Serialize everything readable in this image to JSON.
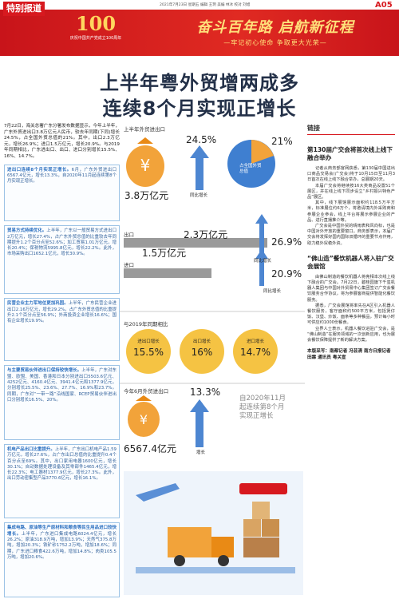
{
  "header": {
    "section": "特别报道",
    "page": "A05",
    "dateline": "2021年7月23日 星期五 编辑 王玥 美编 林冰 校对 刘旭",
    "anniversary": "100",
    "party_text": "庆祝中国共产党成立100周年",
    "slogan": "奋斗百年路 启航新征程",
    "subslogan": "—牢记初心使命 争取更大光荣—"
  },
  "title": [
    "上半年粤外贸增两成多",
    "连续8个月实现正增长"
  ],
  "left": {
    "intro": "7月22日，海关总署广东分署发布数据显示，今年上半年，广东外贸进出口3.8万亿元人民币，较去年同期(下同)增长24.5%，占全国外贸总值的21%。其中，出口2.3万亿元，增长26.9%；进口1.5万亿元，增长20.9%。与2019年同期相比，广东进出口、出口、进口分别增长15.5%、16%、14.7%。",
    "boxes": [
      {
        "lead": "进出口连续8个月实现正增长。",
        "text": "6月，广东外贸进出口6567.4亿元，增长13.3%，自2020年11月起连续第8个月实现正增长。"
      },
      {
        "lead": "贸易方式持续优化。",
        "text": "上半年，广东以一般贸易方式进出口2万亿元，增长27.4%，占广东外贸总值的比重较去年同期提升1.2个百分点至52.6%；加工贸易1.01万亿元，增长20.4%；保税物流5995.8亿元，增长22.2%。此外，市场采购出口1652.1亿元，增长30.9%。"
      },
      {
        "lead": "民营企业主力军地位更加巩固。",
        "text": "上半年，广东民营企业进出口2.16万亿元，增长29.2%，占广东外贸总值的比重提升2.1个百分点至56.9%；外商投资企业增长16.6%；国有企业增长19.9%。"
      },
      {
        "lead": "与主要贸易伙伴进出口保持较快增长。",
        "text": "上半年，广东对东盟、欧盟、美国、香港和日本分别进出口5503.6亿元、4252亿元、4160.4亿元、3941.4亿元和1377.9亿元，分别增长25.5%、23.6%、27.7%、16.9%和23.7%。同期，广东对“一带一路”沿线国家、RCEP贸易伙伴进出口分别增长16.5%、20%。"
      },
      {
        "lead": "机电产品出口比重提升。",
        "text": "上半年，广东出口机电产品1.59万亿元，增长27.6%，占广东出口总值的比重提升0.4个百分点至69%。其中，出口家用电器1600亿元，增长30.1%；自动数据处理设备及其零部件1465.4亿元，增长22.3%；电工器材1377.9亿元，增长27.3%。此外，出口劳动密集型产品3770.6亿元，增长16.1%。"
      },
      {
        "lead": "集成电路、原油等生产原材料和粮食等民生用品进口较快增长。",
        "text": "上半年，广东进口集成电路6024.4亿元，增长26.2%；原油318.9万吨，增加13.9%；天然气375.8万吨，增加20.3%；铁矿砂1752.2万吨，增加18.6%；同期，广东进口粮食422.6万吨，增加14.8%；肉类105.5万吨，增加20.6%。"
      }
    ]
  },
  "infographic": {
    "total_label": "上半年外贸进出口",
    "total_value": "3.8万亿元",
    "total_growth": "24.5%",
    "growth_caption": "同比增长",
    "share_value": "21%",
    "share_caption": "占全国外贸总值",
    "export_label": "出口",
    "export_value": "2.3万亿元",
    "export_growth": "26.9%",
    "export_caption": "同比增长",
    "import_label": "进口",
    "import_value": "1.5万亿元",
    "import_growth": "20.9%",
    "import_caption": "同比增长",
    "compare_label": "与2019年同期相比",
    "compare": [
      {
        "label": "进出口增长",
        "value": "15.5%"
      },
      {
        "label": "出口增长",
        "value": "16%"
      },
      {
        "label": "进口增长",
        "value": "14.7%"
      }
    ],
    "june_label": "今年6月外贸进出口",
    "june_value": "6567.4亿元",
    "june_growth": "13.3%",
    "june_caption": "增长",
    "streak": "自2020年11月起连续第8个月实现正增长"
  },
  "sidebar": {
    "label": "链接",
    "articles": [
      {
        "title": "第130届广交会将首次线上线下融合举办",
        "paragraphs": [
          "记者从商务部官网获悉，第130届中国进出口商品交易会(广交会)将于10月15日至11月3日首次在线上线下融合举办，总展期20天。",
          "本届广交会将继续按16大类商品设置51个展区，并在线上线下同步设立“乡村振兴特色产品”展区。",
          "其中，线下展馆展示面积约118.5万平方米，标准展位约6万个，将邀请境内外采购商和参展企业参会，线上平台将展示参展企业的产品、进行直播推介等。",
          "广交会是中国外贸的晴雨表和风向标，也是中国对外开放的重要窗口。商务部表示，本届广交会将发挥好国内国际双循环的重要节点作用，助力稳外贸稳外资。"
        ]
      },
      {
        "title": "“佛山造”餐饮机器人将入驻广交会展馆",
        "paragraphs": [
          "由佛山制造的餐饮机器人将亮相本次线上线下融合的广交会。7月22日，碧桂园旗下千玺机器人集团与中国对外贸易中心集团签订广交会餐饮服务合作协议，将为参展客商提供智能化餐饮服务。",
          "据悉，广交会展馆将率先在A区引入机器人餐饮服务，客厅面积约500平方米，包括煲仔饭、汉堡、炒饭、面条等多种餐品，预计每小时可供应约1000份餐食。",
          "业界人士表示，机器人餐饮进驻广交会，是“佛山制造”在服务领域的一次创新应用，也为展会餐饮保障提供了新的解决方案。"
        ]
      }
    ],
    "byline": "本版采写：南都记者 冯芸清 南方日报记者 田霖 通讯员 粤关宣"
  }
}
